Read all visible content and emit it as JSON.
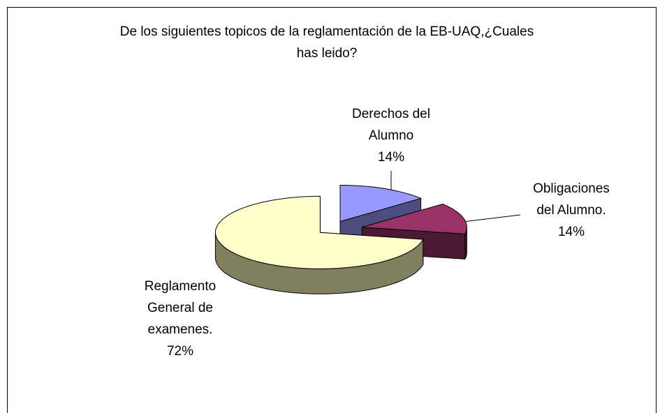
{
  "chart_data": {
    "type": "pie3d",
    "title": "De los siguientes topicos de la reglamentación de la EB-UAQ,¿Cuales has leido?",
    "categories": [
      "Derechos del Alumno",
      "Obligaciones del Alumno.",
      "Reglamento General de examenes."
    ],
    "values": [
      14,
      14,
      72
    ],
    "value_labels": [
      "14%",
      "14%",
      "72%"
    ],
    "colors": [
      "#9999ff",
      "#993366",
      "#ffffcc"
    ],
    "side_colors": [
      "#4d4d80",
      "#4d1a33",
      "#808060"
    ]
  }
}
